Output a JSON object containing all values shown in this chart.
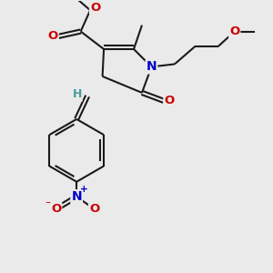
{
  "bg_color": "#eaeaea",
  "bond_color": "#1a1a1a",
  "bond_width": 1.5,
  "dbo": 0.07,
  "atom_colors": {
    "O": "#cc0000",
    "N": "#0000cc",
    "H": "#4a9a9a",
    "C": "#1a1a1a"
  },
  "fs": 8.5
}
